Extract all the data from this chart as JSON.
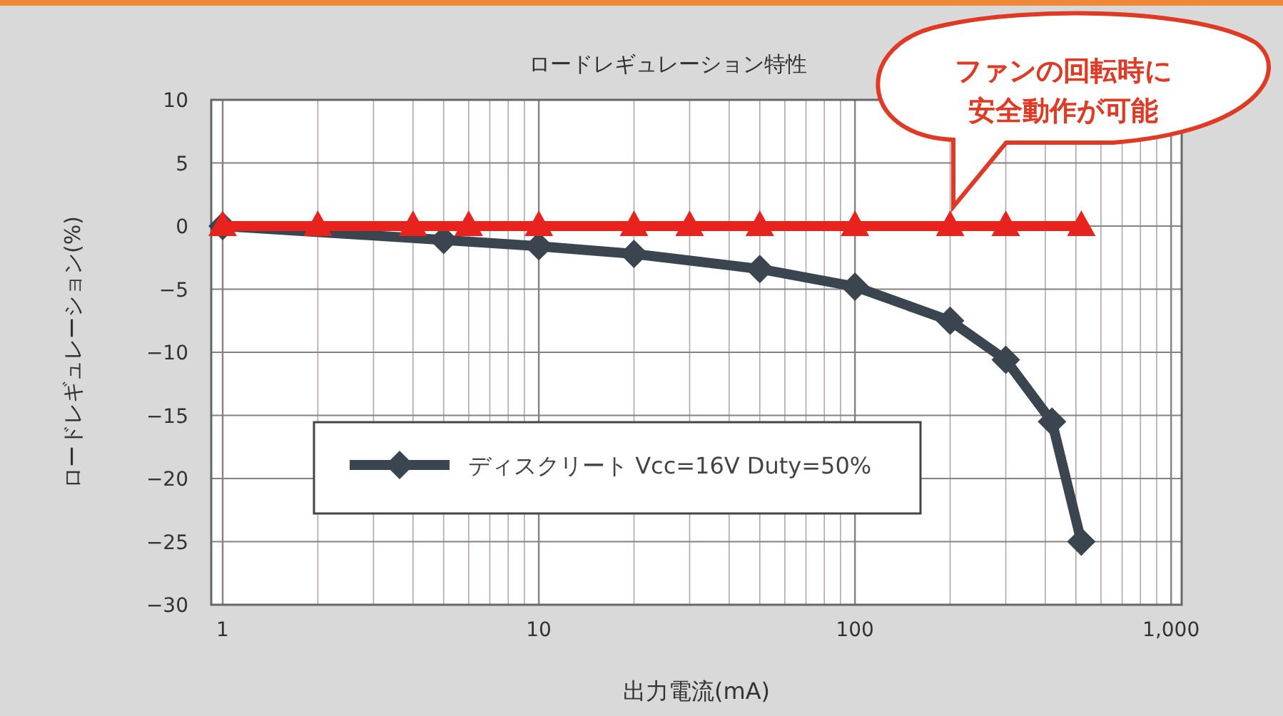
{
  "chart_data": {
    "type": "line",
    "title": "ロードレギュレーション特性",
    "xlabel": "出力電流(mA)",
    "ylabel": "ロードレギュレーション(%)",
    "log": "x",
    "grid": true,
    "legend": "bottom left",
    "line_style": "solid",
    "xlim": [
      0.92,
      1080
    ],
    "xticks": [
      1,
      10,
      100,
      {
        "value": 1000,
        "label": "1,000"
      }
    ],
    "ylim": [
      -30,
      10
    ],
    "yticks": [
      10,
      5,
      0,
      -5,
      -10,
      -15,
      -20,
      -25,
      -30
    ],
    "series": [
      {
        "name": "ディスクリート Vcc=16V Duty=50%",
        "color": "#3b4550",
        "marker": "diamond",
        "x": [
          1,
          5,
          10,
          20,
          50,
          100,
          200,
          300,
          420,
          520
        ],
        "values": [
          0,
          -1.1,
          -1.6,
          -2.2,
          -3.4,
          -4.8,
          -7.5,
          -10.6,
          -15.5,
          -25
        ]
      },
      {
        "color": "#e8231e",
        "marker": "triangle",
        "x": [
          1,
          2,
          4,
          6,
          10,
          20,
          30,
          50,
          100,
          200,
          300,
          520
        ],
        "values": [
          0,
          0,
          0,
          0,
          0,
          0,
          0,
          0,
          0,
          0,
          0,
          0
        ]
      }
    ],
    "annotations": [
      "ファンの回転時に安全動作が可能"
    ]
  }
}
